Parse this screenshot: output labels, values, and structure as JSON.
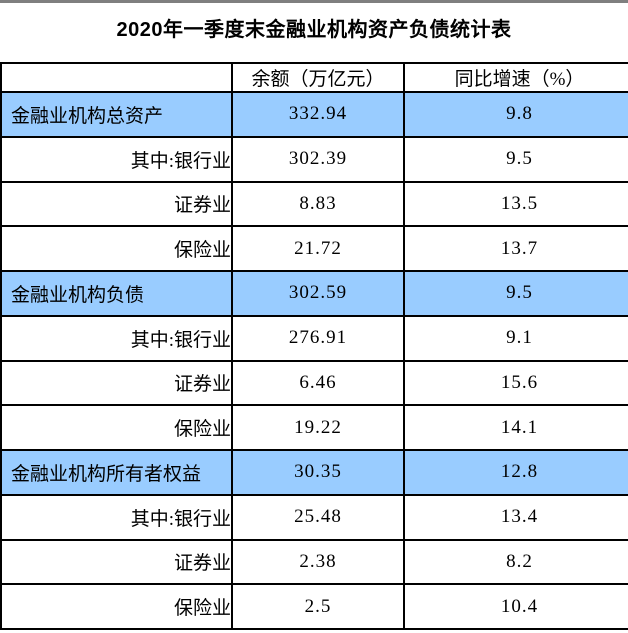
{
  "title": "2020年一季度末金融业机构资产负债统计表",
  "colors": {
    "highlight": "#99CCFF",
    "border": "#000000",
    "top_line": "#7f7f7f"
  },
  "table": {
    "column_headers": [
      "",
      "余额（万亿元）",
      "同比增速（%）"
    ],
    "rows": [
      {
        "type": "section",
        "label": "金融业机构总资产",
        "balance": "332.94",
        "growth": "9.8"
      },
      {
        "type": "sub",
        "label": "其中:银行业",
        "balance": "302.39",
        "growth": "9.5"
      },
      {
        "type": "sub",
        "label": "证券业",
        "balance": "8.83",
        "growth": "13.5"
      },
      {
        "type": "sub",
        "label": "保险业",
        "balance": "21.72",
        "growth": "13.7"
      },
      {
        "type": "section",
        "label": "金融业机构负债",
        "balance": "302.59",
        "growth": "9.5"
      },
      {
        "type": "sub",
        "label": "其中:银行业",
        "balance": "276.91",
        "growth": "9.1"
      },
      {
        "type": "sub",
        "label": "证券业",
        "balance": "6.46",
        "growth": "15.6"
      },
      {
        "type": "sub",
        "label": "保险业",
        "balance": "19.22",
        "growth": "14.1"
      },
      {
        "type": "section",
        "label": "金融业机构所有者权益",
        "balance": "30.35",
        "growth": "12.8"
      },
      {
        "type": "sub",
        "label": "其中:银行业",
        "balance": "25.48",
        "growth": "13.4"
      },
      {
        "type": "sub",
        "label": "证券业",
        "balance": "2.38",
        "growth": "8.2"
      },
      {
        "type": "sub",
        "label": "保险业",
        "balance": "2.5",
        "growth": "10.4"
      }
    ]
  }
}
